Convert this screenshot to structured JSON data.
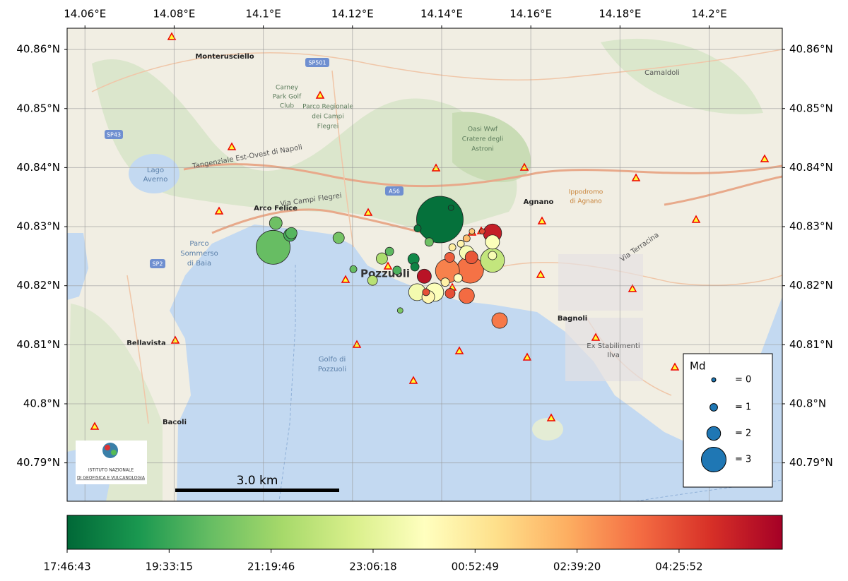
{
  "chart_data": {
    "type": "bubble_map",
    "xlim": [
      14.056,
      14.2164
    ],
    "ylim": [
      40.7835,
      40.8636
    ],
    "xticks": [
      {
        "value": 14.06,
        "label": "14.06°E"
      },
      {
        "value": 14.08,
        "label": "14.08°E"
      },
      {
        "value": 14.1,
        "label": "14.1°E"
      },
      {
        "value": 14.12,
        "label": "14.12°E"
      },
      {
        "value": 14.14,
        "label": "14.14°E"
      },
      {
        "value": 14.16,
        "label": "14.16°E"
      },
      {
        "value": 14.18,
        "label": "14.18°E"
      },
      {
        "value": 14.2,
        "label": "14.2°E"
      }
    ],
    "yticks": [
      {
        "value": 40.86,
        "label": "40.86°N"
      },
      {
        "value": 40.85,
        "label": "40.85°N"
      },
      {
        "value": 40.84,
        "label": "40.84°N"
      },
      {
        "value": 40.83,
        "label": "40.83°N"
      },
      {
        "value": 40.82,
        "label": "40.82°N"
      },
      {
        "value": 40.81,
        "label": "40.81°N"
      },
      {
        "value": 40.8,
        "label": "40.8°N"
      },
      {
        "value": 40.79,
        "label": "40.79°N"
      }
    ],
    "grid": true,
    "x": [
      14.1396,
      14.1022,
      14.1028,
      14.106,
      14.1063,
      14.1169,
      14.1202,
      14.1245,
      14.1266,
      14.1283,
      14.13,
      14.1307,
      14.1337,
      14.134,
      14.1346,
      14.1372,
      14.1421,
      14.1361,
      14.1345,
      14.1384,
      14.137,
      14.1413,
      14.1464,
      14.1514,
      14.1514,
      14.1514,
      14.1456,
      14.1467,
      14.1456,
      14.1419,
      14.1418,
      14.153,
      14.1514,
      14.1424,
      14.1443,
      14.1456,
      14.1468,
      14.1491,
      14.1437,
      14.1408,
      14.1365
    ],
    "y": [
      40.8312,
      40.8265,
      40.8306,
      40.8286,
      40.8289,
      40.8281,
      40.8228,
      40.8209,
      40.8246,
      40.8258,
      40.8226,
      40.8158,
      40.8245,
      40.8232,
      40.8297,
      40.8274,
      40.8332,
      40.8216,
      40.8189,
      40.8189,
      40.8181,
      40.8225,
      40.8227,
      40.8243,
      40.8289,
      40.8274,
      40.8256,
      40.8248,
      40.8183,
      40.8187,
      40.8248,
      40.8141,
      40.8251,
      40.8265,
      40.8271,
      40.828,
      40.8292,
      40.8292,
      40.8213,
      40.8206,
      40.8189
    ],
    "sizes": [
      4.08,
      3.54,
      1.87,
      1.87,
      1.67,
      1.67,
      0.87,
      1.44,
      1.67,
      1.18,
      1.18,
      0.49,
      1.67,
      1.18,
      0.87,
      1.18,
      0.49,
      2.05,
      2.36,
      2.49,
      1.87,
      2.95,
      3.14,
      2.95,
      2.49,
      2.05,
      2.05,
      1.87,
      2.21,
      1.44,
      1.44,
      2.21,
      1.18,
      0.87,
      0.87,
      0.87,
      0.49,
      0.49,
      1.18,
      1.18,
      0.87
    ],
    "times": [
      800,
      9000,
      9500,
      7000,
      8000,
      10000,
      9000,
      15000,
      14000,
      8500,
      7500,
      10500,
      3000,
      2500,
      1500,
      9500,
      500,
      43000,
      21000,
      22000,
      23500,
      34500,
      35500,
      16000,
      42000,
      22000,
      21500,
      37500,
      36000,
      38000,
      37000,
      35000,
      21500,
      25000,
      24000,
      30000,
      29000,
      38500,
      22500,
      24500,
      38000
    ],
    "colormap": [
      "#006837",
      "#1a9850",
      "#66bd63",
      "#a6d96a",
      "#d9ef8b",
      "#ffffbf",
      "#fee08b",
      "#fdae61",
      "#f46d43",
      "#d73027",
      "#a50026"
    ],
    "clim": [
      0,
      44818
    ],
    "cticks": [
      {
        "value": 0,
        "label": "17:46:43"
      },
      {
        "value": 6392,
        "label": "19:33:15"
      },
      {
        "value": 12783,
        "label": "21:19:46"
      },
      {
        "value": 19175,
        "label": "23:06:18"
      },
      {
        "value": 25566,
        "label": "00:52:49"
      },
      {
        "value": 31957,
        "label": "02:39:20"
      },
      {
        "value": 38349,
        "label": "04:25:52"
      }
    ],
    "legend_title": "Md",
    "size_legend": [
      {
        "value": 0,
        "label": "= 0"
      },
      {
        "value": 1,
        "label": "= 1"
      },
      {
        "value": 2,
        "label": "= 2"
      },
      {
        "value": 3,
        "label": "= 3"
      }
    ],
    "legend_color": "#1f77b4"
  },
  "map_labels": [
    "Monterusciello",
    "Lago",
    "Averno",
    "Arco Felice",
    "Parco",
    "Sommerso",
    "di Baia",
    "Pozzuoli",
    "Agnano",
    "Bagnoli",
    "Bacoli",
    "Bellavista",
    "Golfo di",
    "Pozzuoli",
    "Oasi Wwf",
    "Cratere degli",
    "Astroni",
    "Ippodromo",
    "di Agnano",
    "Parco Regionale",
    "dei Campi",
    "Flegrei",
    "Carney",
    "Park Golf",
    "Club",
    "Camaldoli",
    "Ex Stabilimenti",
    "Ilva",
    "A56",
    "SP501",
    "SP43",
    "SP2",
    "Via Campi Flegrei",
    "Tangenziale Est-Ovest di Napoli",
    "Via Terracina"
  ],
  "scale_label": "3.0 km",
  "logo": [
    "ISTITUTO NAZIONALE",
    "DI GEOFISICA E VULCANOLOGIA"
  ]
}
